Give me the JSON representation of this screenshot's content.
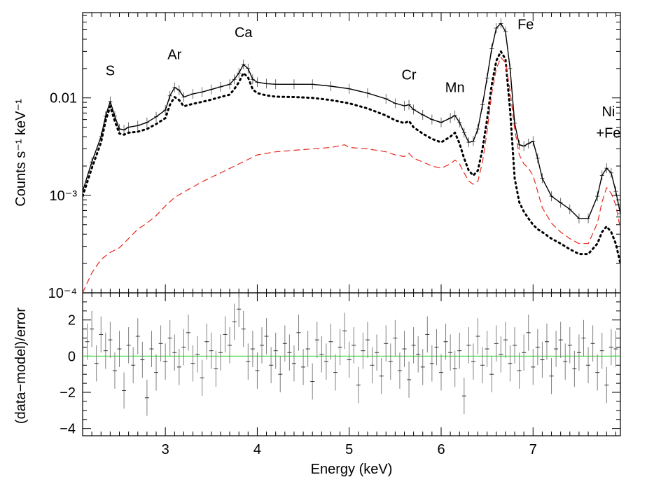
{
  "chart_data": [
    {
      "type": "line",
      "panel": "spectrum",
      "ylabel": "Counts s⁻¹ keV⁻¹",
      "yscale": "log",
      "xlim": [
        2.1,
        7.95
      ],
      "ylim": [
        0.0001,
        0.075
      ],
      "ytick_labels": [
        {
          "value": 0.01,
          "text": "0.01"
        },
        {
          "value": 0.001,
          "text": "10⁻³"
        },
        {
          "value": 0.0001,
          "text": "10⁻⁴"
        }
      ],
      "annotations": [
        {
          "text": "S",
          "x": 2.4,
          "y": 0.017
        },
        {
          "text": "Ar",
          "x": 3.1,
          "y": 0.025
        },
        {
          "text": "Ca",
          "x": 3.85,
          "y": 0.042
        },
        {
          "text": "Cr",
          "x": 5.65,
          "y": 0.0155
        },
        {
          "text": "Mn",
          "x": 6.15,
          "y": 0.0115
        },
        {
          "text": "Fe",
          "x": 6.92,
          "y": 0.051
        },
        {
          "text": "Ni",
          "x": 7.82,
          "y": 0.0065
        },
        {
          "text": "+Fe",
          "x": 7.82,
          "y": 0.0039
        }
      ],
      "series": [
        {
          "style": "data",
          "color": "#000000",
          "x": [
            2.1,
            2.2,
            2.3,
            2.35,
            2.4,
            2.45,
            2.5,
            2.55,
            2.6,
            2.7,
            2.8,
            2.9,
            3.0,
            3.05,
            3.1,
            3.15,
            3.2,
            3.3,
            3.4,
            3.5,
            3.6,
            3.7,
            3.75,
            3.8,
            3.85,
            3.9,
            3.95,
            4.0,
            4.1,
            4.2,
            4.4,
            4.6,
            4.8,
            5.0,
            5.2,
            5.4,
            5.5,
            5.6,
            5.65,
            5.7,
            5.8,
            5.9,
            6.0,
            6.1,
            6.15,
            6.2,
            6.25,
            6.3,
            6.35,
            6.4,
            6.45,
            6.5,
            6.55,
            6.6,
            6.65,
            6.7,
            6.75,
            6.8,
            6.85,
            6.9,
            6.95,
            7.0,
            7.05,
            7.1,
            7.2,
            7.3,
            7.4,
            7.5,
            7.6,
            7.7,
            7.75,
            7.8,
            7.85,
            7.9,
            7.95
          ],
          "y": [
            0.0011,
            0.0022,
            0.004,
            0.0065,
            0.0092,
            0.0065,
            0.0048,
            0.0047,
            0.005,
            0.0052,
            0.0056,
            0.0064,
            0.0075,
            0.0105,
            0.0128,
            0.012,
            0.0102,
            0.011,
            0.0115,
            0.0122,
            0.013,
            0.0138,
            0.0155,
            0.018,
            0.022,
            0.02,
            0.0155,
            0.0145,
            0.014,
            0.0138,
            0.0138,
            0.0138,
            0.0132,
            0.0124,
            0.0112,
            0.0098,
            0.0088,
            0.0083,
            0.0085,
            0.0076,
            0.0067,
            0.006,
            0.0056,
            0.0062,
            0.0066,
            0.0056,
            0.0044,
            0.0035,
            0.0036,
            0.0048,
            0.0085,
            0.016,
            0.032,
            0.052,
            0.058,
            0.048,
            0.02,
            0.0055,
            0.0033,
            0.0032,
            0.0034,
            0.0036,
            0.0024,
            0.0015,
            0.00098,
            0.00084,
            0.00072,
            0.00058,
            0.00058,
            0.00098,
            0.0016,
            0.0019,
            0.0017,
            0.0011,
            0.00065
          ]
        },
        {
          "style": "model-total",
          "color": "#000000",
          "x": [
            2.1,
            2.2,
            2.3,
            2.35,
            2.4,
            2.45,
            2.5,
            2.55,
            2.6,
            2.7,
            2.8,
            2.9,
            3.0,
            3.05,
            3.1,
            3.15,
            3.2,
            3.3,
            3.4,
            3.5,
            3.6,
            3.7,
            3.75,
            3.8,
            3.85,
            3.9,
            3.95,
            4.0,
            4.1,
            4.2,
            4.4,
            4.6,
            4.8,
            5.0,
            5.2,
            5.4,
            5.5,
            5.6,
            5.65,
            5.7,
            5.8,
            5.9,
            6.0,
            6.1,
            6.15,
            6.2,
            6.25,
            6.3,
            6.35,
            6.4,
            6.45,
            6.5,
            6.55,
            6.6,
            6.65,
            6.7,
            6.75,
            6.8,
            6.85,
            6.9,
            6.95,
            7.0,
            7.05,
            7.1,
            7.2,
            7.3,
            7.4,
            7.5,
            7.6,
            7.7,
            7.75,
            7.8,
            7.85,
            7.9,
            7.95
          ],
          "y": [
            0.0011,
            0.0022,
            0.004,
            0.0065,
            0.0092,
            0.0065,
            0.0048,
            0.0047,
            0.005,
            0.0052,
            0.0056,
            0.0064,
            0.0075,
            0.0105,
            0.0128,
            0.012,
            0.0102,
            0.011,
            0.0115,
            0.0122,
            0.013,
            0.0138,
            0.0155,
            0.018,
            0.022,
            0.02,
            0.0155,
            0.0145,
            0.014,
            0.0138,
            0.0138,
            0.0138,
            0.0132,
            0.0124,
            0.0112,
            0.0098,
            0.0088,
            0.0083,
            0.0085,
            0.0076,
            0.0067,
            0.006,
            0.0056,
            0.0062,
            0.0066,
            0.0056,
            0.0044,
            0.0035,
            0.0036,
            0.0048,
            0.0085,
            0.016,
            0.032,
            0.052,
            0.058,
            0.048,
            0.02,
            0.0055,
            0.0033,
            0.0032,
            0.0034,
            0.0036,
            0.0024,
            0.0015,
            0.00098,
            0.00084,
            0.00072,
            0.00058,
            0.00058,
            0.00098,
            0.0016,
            0.0019,
            0.0017,
            0.0011,
            0.00065
          ]
        },
        {
          "style": "dotted",
          "color": "#000000",
          "x": [
            2.1,
            2.2,
            2.3,
            2.35,
            2.4,
            2.45,
            2.5,
            2.55,
            2.6,
            2.7,
            2.8,
            2.9,
            3.0,
            3.05,
            3.1,
            3.15,
            3.2,
            3.3,
            3.4,
            3.5,
            3.6,
            3.7,
            3.75,
            3.8,
            3.85,
            3.9,
            3.95,
            4.0,
            4.1,
            4.2,
            4.4,
            4.6,
            4.8,
            5.0,
            5.2,
            5.4,
            5.5,
            5.6,
            5.65,
            5.7,
            5.8,
            5.9,
            6.0,
            6.1,
            6.15,
            6.2,
            6.25,
            6.3,
            6.35,
            6.4,
            6.45,
            6.5,
            6.55,
            6.6,
            6.65,
            6.7,
            6.75,
            6.8,
            6.85,
            6.9,
            6.95,
            7.0,
            7.05,
            7.1,
            7.2,
            7.3,
            7.4,
            7.5,
            7.6,
            7.7,
            7.75,
            7.8,
            7.85,
            7.9,
            7.95
          ],
          "y": [
            0.00098,
            0.0019,
            0.0035,
            0.0058,
            0.0082,
            0.0058,
            0.0043,
            0.0042,
            0.0044,
            0.0045,
            0.0048,
            0.0054,
            0.0062,
            0.0085,
            0.0102,
            0.0095,
            0.0082,
            0.0087,
            0.0091,
            0.0096,
            0.0102,
            0.0108,
            0.0123,
            0.0145,
            0.018,
            0.0162,
            0.0122,
            0.0112,
            0.0106,
            0.0103,
            0.0102,
            0.01,
            0.0095,
            0.0088,
            0.0078,
            0.0066,
            0.0059,
            0.0055,
            0.0058,
            0.005,
            0.0043,
            0.0038,
            0.0035,
            0.004,
            0.0044,
            0.0034,
            0.0024,
            0.0018,
            0.0016,
            0.0018,
            0.003,
            0.006,
            0.0135,
            0.024,
            0.03,
            0.025,
            0.0075,
            0.0015,
            0.00085,
            0.00068,
            0.00058,
            0.0005,
            0.00045,
            0.00042,
            0.00036,
            0.00032,
            0.00028,
            0.00025,
            0.00025,
            0.00032,
            0.00042,
            0.00048,
            0.00042,
            0.00032,
            0.0002
          ]
        },
        {
          "style": "dashed",
          "color": "#e8281e",
          "x": [
            2.1,
            2.2,
            2.3,
            2.4,
            2.5,
            2.6,
            2.7,
            2.8,
            2.9,
            3.0,
            3.1,
            3.2,
            3.3,
            3.4,
            3.6,
            3.8,
            4.0,
            4.1,
            4.2,
            4.4,
            4.6,
            4.8,
            4.95,
            5.0,
            5.2,
            5.4,
            5.5,
            5.6,
            5.65,
            5.7,
            5.8,
            5.9,
            6.0,
            6.1,
            6.15,
            6.2,
            6.25,
            6.3,
            6.35,
            6.4,
            6.45,
            6.5,
            6.55,
            6.6,
            6.65,
            6.7,
            6.75,
            6.8,
            6.85,
            6.9,
            6.95,
            7.0,
            7.05,
            7.1,
            7.2,
            7.3,
            7.4,
            7.5,
            7.6,
            7.7,
            7.75,
            7.8,
            7.85,
            7.9,
            7.95
          ],
          "y": [
            0.0001,
            0.00016,
            0.00022,
            0.00026,
            0.00029,
            0.00036,
            0.00045,
            0.00052,
            0.00062,
            0.00078,
            0.00095,
            0.00108,
            0.00122,
            0.00138,
            0.0017,
            0.0021,
            0.0026,
            0.0027,
            0.0028,
            0.0029,
            0.003,
            0.0031,
            0.0033,
            0.0031,
            0.003,
            0.0028,
            0.0026,
            0.0025,
            0.0027,
            0.0024,
            0.0022,
            0.002,
            0.0019,
            0.0021,
            0.0023,
            0.0021,
            0.0017,
            0.0014,
            0.0013,
            0.0014,
            0.0022,
            0.0045,
            0.011,
            0.02,
            0.026,
            0.023,
            0.012,
            0.0048,
            0.0026,
            0.0021,
            0.0019,
            0.0016,
            0.0011,
            0.00075,
            0.00052,
            0.00042,
            0.00036,
            0.00032,
            0.00032,
            0.00052,
            0.00085,
            0.0012,
            0.00105,
            0.0008,
            0.00045
          ]
        }
      ]
    },
    {
      "type": "scatter",
      "panel": "residuals",
      "ylabel": "(data−model)/error",
      "xlabel": "Energy (keV)",
      "xlim": [
        2.1,
        7.95
      ],
      "ylim": [
        -4.4,
        3.5
      ],
      "x_tick_labels": [
        {
          "value": 3,
          "text": "3"
        },
        {
          "value": 4,
          "text": "4"
        },
        {
          "value": 5,
          "text": "5"
        },
        {
          "value": 6,
          "text": "6"
        },
        {
          "value": 7,
          "text": "7"
        }
      ],
      "y_tick_labels": [
        {
          "value": 2,
          "text": "2"
        },
        {
          "value": 0,
          "text": "0"
        },
        {
          "value": -2,
          "text": "−2"
        },
        {
          "value": -4,
          "text": "−4"
        }
      ],
      "zero_line_color": "#4cd94c",
      "series": [
        {
          "color": "#808080",
          "error": 1.0,
          "x": [
            2.15,
            2.2,
            2.25,
            2.3,
            2.35,
            2.4,
            2.45,
            2.5,
            2.55,
            2.6,
            2.65,
            2.7,
            2.75,
            2.8,
            2.85,
            2.9,
            2.95,
            3.0,
            3.05,
            3.1,
            3.15,
            3.2,
            3.25,
            3.3,
            3.35,
            3.4,
            3.45,
            3.5,
            3.55,
            3.6,
            3.65,
            3.7,
            3.75,
            3.8,
            3.85,
            3.9,
            3.95,
            4.0,
            4.05,
            4.1,
            4.15,
            4.2,
            4.25,
            4.3,
            4.35,
            4.4,
            4.45,
            4.5,
            4.55,
            4.6,
            4.65,
            4.7,
            4.75,
            4.8,
            4.85,
            4.9,
            4.95,
            5.0,
            5.05,
            5.1,
            5.15,
            5.2,
            5.25,
            5.3,
            5.35,
            5.4,
            5.45,
            5.5,
            5.55,
            5.6,
            5.65,
            5.7,
            5.75,
            5.8,
            5.85,
            5.9,
            5.95,
            6.0,
            6.05,
            6.1,
            6.15,
            6.2,
            6.25,
            6.3,
            6.35,
            6.4,
            6.45,
            6.5,
            6.55,
            6.6,
            6.65,
            6.7,
            6.75,
            6.8,
            6.85,
            6.9,
            6.95,
            7.0,
            7.05,
            7.1,
            7.15,
            7.2,
            7.25,
            7.3,
            7.35,
            7.4,
            7.45,
            7.5,
            7.55,
            7.6,
            7.65,
            7.7,
            7.75,
            7.8,
            7.85,
            7.9
          ],
          "y": [
            0.8,
            1.5,
            -0.4,
            1.2,
            0.3,
            0.9,
            -0.8,
            0.4,
            -1.9,
            0.6,
            -0.5,
            1.1,
            -0.2,
            -2.3,
            0.4,
            -0.9,
            0.7,
            -0.3,
            1.0,
            0.2,
            -0.6,
            0.5,
            1.3,
            -0.4,
            0.1,
            -1.2,
            0.8,
            0.3,
            -0.7,
            0.2,
            1.2,
            0.6,
            1.9,
            2.6,
            1.5,
            -0.3,
            0.4,
            -0.8,
            0.6,
            1.1,
            -0.5,
            0.3,
            -1.0,
            0.7,
            0.2,
            -0.4,
            1.3,
            -0.6,
            0.4,
            -1.4,
            0.9,
            0.1,
            -0.3,
            0.8,
            -0.9,
            0.5,
            1.4,
            -0.2,
            0.6,
            -1.6,
            0.3,
            0.9,
            -0.5,
            0.2,
            -1.1,
            0.7,
            -0.3,
            1.0,
            -0.8,
            0.4,
            -1.3,
            0.6,
            0.1,
            -0.6,
            1.2,
            -0.4,
            0.5,
            -0.9,
            0.8,
            0.2,
            -0.7,
            0.3,
            -2.2,
            0.6,
            -0.3,
            1.1,
            -0.5,
            0.4,
            -1.0,
            0.7,
            0.1,
            0.9,
            -0.4,
            0.6,
            -0.8,
            0.2,
            1.3,
            -0.6,
            0.5,
            -0.2,
            0.8,
            -1.1,
            0.4,
            0.9,
            -0.3,
            0.6,
            -0.7,
            0.2,
            1.0,
            -0.5,
            0.7,
            -0.9,
            0.3,
            -1.6,
            0.5,
            0.4
          ]
        }
      ]
    }
  ]
}
